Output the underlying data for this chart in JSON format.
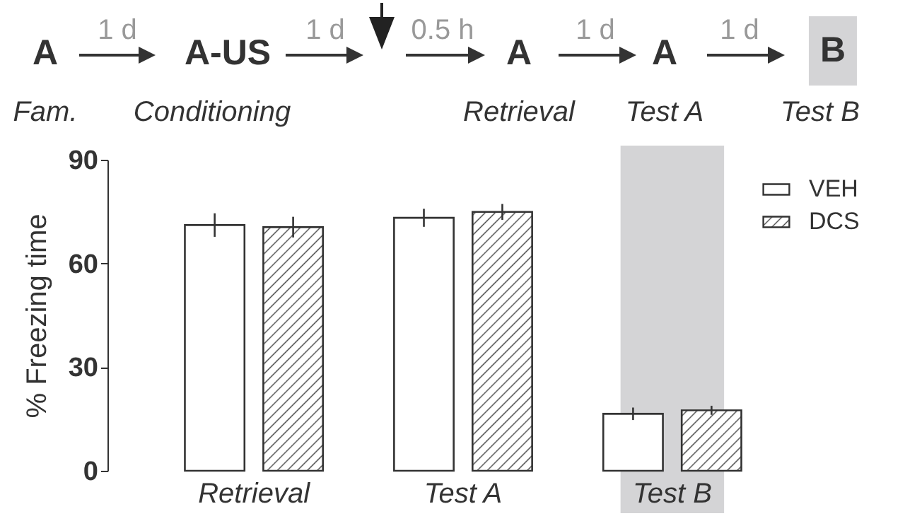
{
  "chart_data": {
    "type": "bar",
    "ylabel": "% Freezing time",
    "categories": [
      "Retrieval",
      "Test A",
      "Test B"
    ],
    "series": [
      {
        "name": "VEH",
        "color": "#ffffff",
        "values": [
          71.1,
          73.2,
          16.5
        ],
        "errors": [
          3.4,
          2.6,
          1.8
        ]
      },
      {
        "name": "DCS",
        "color": "#3a3a3a",
        "values": [
          70.5,
          74.9,
          17.5
        ],
        "errors": [
          3,
          2.3,
          1.3
        ]
      }
    ],
    "ylim": [
      0,
      90
    ],
    "yticks": [
      0,
      30,
      60,
      90
    ],
    "bands": [
      {
        "axis": "x",
        "from": "Test B",
        "to": "Test B",
        "color": "#d4d4d6"
      }
    ],
    "legend": "top right",
    "grid": false,
    "annotations": [
      "A",
      "1 d",
      "A-US",
      "1 d",
      "0.5 h",
      "A",
      "1 d",
      "A",
      "1 d",
      "B",
      "Fam.",
      "Conditioning",
      "Retrieval",
      "Test A",
      "Test B"
    ]
  }
}
